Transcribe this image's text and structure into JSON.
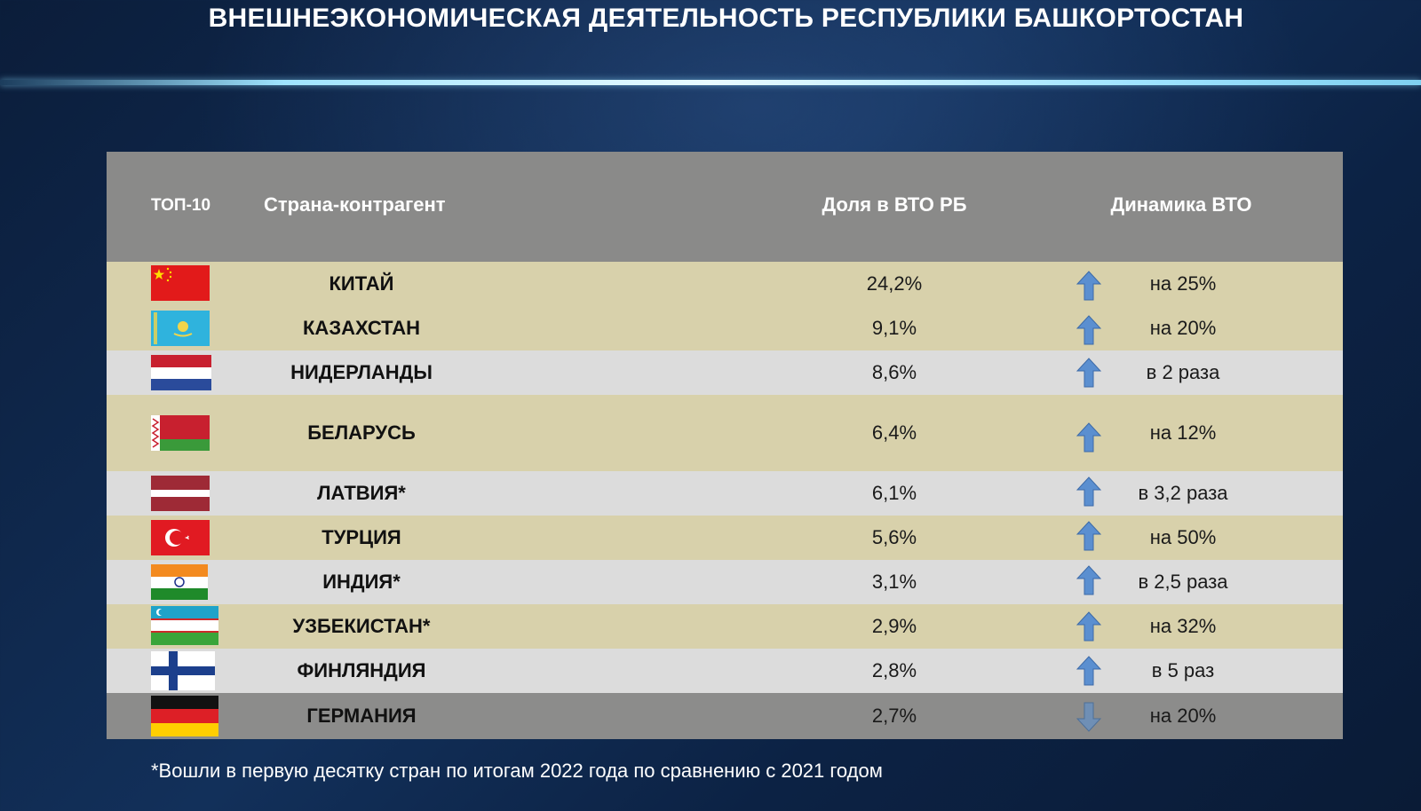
{
  "title": "ВНЕШНЕЭКОНОМИЧЕСКАЯ ДЕЯТЕЛЬНОСТЬ РЕСПУБЛИКИ БАШКОРТОСТАН",
  "table": {
    "headers": {
      "rank": "ТОП-10",
      "country": "Страна-контрагент",
      "share": "Доля в ВТО РБ",
      "dynamics": "Динамика  ВТО"
    },
    "rows": [
      {
        "country": "КИТАЙ",
        "share": "24,2%",
        "dynamics": "на 25%",
        "trend": "up",
        "flag": "china-flag"
      },
      {
        "country": "КАЗАХСТАН",
        "share": "9,1%",
        "dynamics": "на 20%",
        "trend": "up",
        "flag": "kazakhstan-flag"
      },
      {
        "country": "НИДЕРЛАНДЫ",
        "share": "8,6%",
        "dynamics": "в 2 раза",
        "trend": "up",
        "flag": "netherlands-flag"
      },
      {
        "country": "БЕЛАРУСЬ",
        "share": "6,4%",
        "dynamics": "на 12%",
        "trend": "up",
        "flag": "belarus-flag"
      },
      {
        "country": "ЛАТВИЯ*",
        "share": "6,1%",
        "dynamics": "в 3,2 раза",
        "trend": "up",
        "flag": "latvia-flag"
      },
      {
        "country": "ТУРЦИЯ",
        "share": "5,6%",
        "dynamics": "на 50%",
        "trend": "up",
        "flag": "turkey-flag"
      },
      {
        "country": "ИНДИЯ*",
        "share": "3,1%",
        "dynamics": "в 2,5 раза",
        "trend": "up",
        "flag": "india-flag"
      },
      {
        "country": "УЗБЕКИСТАН*",
        "share": "2,9%",
        "dynamics": "на 32%",
        "trend": "up",
        "flag": "uzbekistan-flag"
      },
      {
        "country": "ФИНЛЯНДИЯ",
        "share": "2,8%",
        "dynamics": "в 5 раз",
        "trend": "up",
        "flag": "finland-flag"
      },
      {
        "country": "ГЕРМАНИЯ",
        "share": "2,7%",
        "dynamics": "на 20%",
        "trend": "down",
        "flag": "germany-flag"
      }
    ]
  },
  "footnote": "*Вошли в первую десятку стран по итогам 2022 года по сравнению с 2021 годом",
  "colors": {
    "row_odd": "#d8d1ab",
    "row_even": "#dcdcdc",
    "header": "#8a8a89",
    "arrow": "#5b8fd0"
  }
}
